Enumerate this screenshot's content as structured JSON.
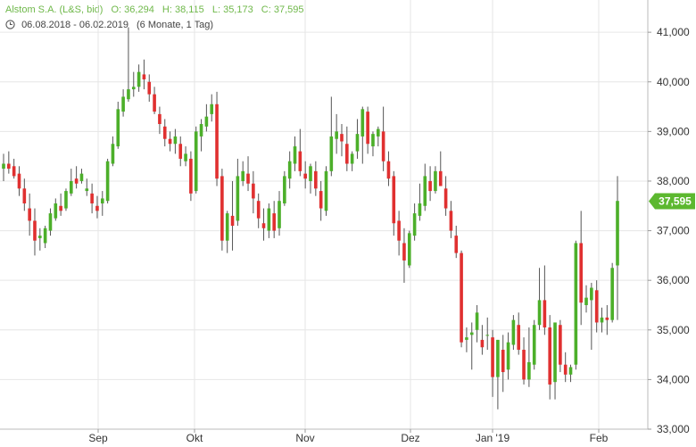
{
  "header": {
    "symbol": "Alstom S.A. (L&S, bid)",
    "open": "O: 36,294",
    "high": "H: 38,115",
    "low": "L: 35,173",
    "close": "C: 37,595",
    "range": "06.08.2018 - 06.02.2019",
    "period": "(6 Monate, 1 Tag)"
  },
  "colors": {
    "up": "#4caf2a",
    "down": "#e03030",
    "wick": "#555555",
    "grid": "#e6e6e6",
    "last_badge": "#5cb82f"
  },
  "chart_data": {
    "type": "candlestick",
    "x_ticks": [
      "Sep",
      "Okt",
      "Nov",
      "Dez",
      "Jan '19",
      "Feb"
    ],
    "y_ticks": [
      "33,000",
      "34,000",
      "35,000",
      "36,000",
      "37,000",
      "38,000",
      "39,000",
      "40,000",
      "41,000"
    ],
    "ylim": [
      33,
      41.65
    ],
    "last_value_label": "37,595",
    "last_value": 37.595,
    "ohlc": [
      [
        38.25,
        38.55,
        38.0,
        38.35
      ],
      [
        38.35,
        38.6,
        38.15,
        38.25
      ],
      [
        38.3,
        38.45,
        38.05,
        38.1
      ],
      [
        38.15,
        38.3,
        37.7,
        37.85
      ],
      [
        37.85,
        38.05,
        37.4,
        37.55
      ],
      [
        37.45,
        37.75,
        36.9,
        37.2
      ],
      [
        37.2,
        37.45,
        36.5,
        36.8
      ],
      [
        36.85,
        37.05,
        36.6,
        36.9
      ],
      [
        36.75,
        37.1,
        36.65,
        37.05
      ],
      [
        37.0,
        37.45,
        36.9,
        37.35
      ],
      [
        37.25,
        37.65,
        37.2,
        37.55
      ],
      [
        37.5,
        37.75,
        37.3,
        37.4
      ],
      [
        37.45,
        37.85,
        37.4,
        37.8
      ],
      [
        37.75,
        38.25,
        37.7,
        38.0
      ],
      [
        38.05,
        38.3,
        37.85,
        37.95
      ],
      [
        38.0,
        38.25,
        37.95,
        38.15
      ],
      [
        37.8,
        38.05,
        37.7,
        37.85
      ],
      [
        37.75,
        37.95,
        37.35,
        37.55
      ],
      [
        37.5,
        37.7,
        37.25,
        37.4
      ],
      [
        37.55,
        37.8,
        37.3,
        37.65
      ],
      [
        37.6,
        38.45,
        37.55,
        38.4
      ],
      [
        38.35,
        38.9,
        38.3,
        38.75
      ],
      [
        38.7,
        39.6,
        38.65,
        39.45
      ],
      [
        39.4,
        39.85,
        39.3,
        39.7
      ],
      [
        39.65,
        41.1,
        39.6,
        39.85
      ],
      [
        39.85,
        40.2,
        39.7,
        39.9
      ],
      [
        39.9,
        40.35,
        39.8,
        40.2
      ],
      [
        40.15,
        40.45,
        39.85,
        40.05
      ],
      [
        40.0,
        40.15,
        39.6,
        39.75
      ],
      [
        39.75,
        39.9,
        39.35,
        39.4
      ],
      [
        39.35,
        39.5,
        38.95,
        39.15
      ],
      [
        39.1,
        39.25,
        38.7,
        38.85
      ],
      [
        38.85,
        39.0,
        38.6,
        38.75
      ],
      [
        38.75,
        39.05,
        38.55,
        38.9
      ],
      [
        38.75,
        38.9,
        38.3,
        38.45
      ],
      [
        38.4,
        38.7,
        38.3,
        38.55
      ],
      [
        38.45,
        38.6,
        37.6,
        37.75
      ],
      [
        37.8,
        39.1,
        37.75,
        39.0
      ],
      [
        38.9,
        39.25,
        38.6,
        39.15
      ],
      [
        39.1,
        39.55,
        39.0,
        39.3
      ],
      [
        39.35,
        39.75,
        39.2,
        39.55
      ],
      [
        39.55,
        39.8,
        37.9,
        38.05
      ],
      [
        38.1,
        38.25,
        36.6,
        36.8
      ],
      [
        36.8,
        37.4,
        36.55,
        37.35
      ],
      [
        37.3,
        38.0,
        36.6,
        37.1
      ],
      [
        37.2,
        38.45,
        37.1,
        38.1
      ],
      [
        38.0,
        38.4,
        37.9,
        38.2
      ],
      [
        38.15,
        38.5,
        37.8,
        37.95
      ],
      [
        37.95,
        38.2,
        37.35,
        37.65
      ],
      [
        37.6,
        37.75,
        37.05,
        37.25
      ],
      [
        37.15,
        37.45,
        36.8,
        37.05
      ],
      [
        37.0,
        37.55,
        36.85,
        37.45
      ],
      [
        37.35,
        37.6,
        36.85,
        37.0
      ],
      [
        37.05,
        37.8,
        36.9,
        37.6
      ],
      [
        37.55,
        38.2,
        37.5,
        38.1
      ],
      [
        38.05,
        38.6,
        37.85,
        38.4
      ],
      [
        38.35,
        38.9,
        38.2,
        38.7
      ],
      [
        38.6,
        39.05,
        38.1,
        38.2
      ],
      [
        38.15,
        38.4,
        37.85,
        38.05
      ],
      [
        38.0,
        38.35,
        37.75,
        38.3
      ],
      [
        38.2,
        38.4,
        37.7,
        37.85
      ],
      [
        37.8,
        38.0,
        37.2,
        37.45
      ],
      [
        37.4,
        38.3,
        37.3,
        38.2
      ],
      [
        38.2,
        39.7,
        38.1,
        38.9
      ],
      [
        38.85,
        39.35,
        38.55,
        39.0
      ],
      [
        38.95,
        39.15,
        38.5,
        38.8
      ],
      [
        38.75,
        39.1,
        38.2,
        38.35
      ],
      [
        38.35,
        38.6,
        38.2,
        38.55
      ],
      [
        38.6,
        39.25,
        38.45,
        38.95
      ],
      [
        38.9,
        39.5,
        38.35,
        39.45
      ],
      [
        39.4,
        39.5,
        38.55,
        38.75
      ],
      [
        38.7,
        39.0,
        38.5,
        38.95
      ],
      [
        38.9,
        39.1,
        38.7,
        39.05
      ],
      [
        39.0,
        39.5,
        38.2,
        38.4
      ],
      [
        38.4,
        38.6,
        37.9,
        38.05
      ],
      [
        38.1,
        38.2,
        36.9,
        37.15
      ],
      [
        37.2,
        37.4,
        36.5,
        36.8
      ],
      [
        36.75,
        37.05,
        35.95,
        36.4
      ],
      [
        36.3,
        37.0,
        36.25,
        36.95
      ],
      [
        36.9,
        37.55,
        36.8,
        37.35
      ],
      [
        37.3,
        37.95,
        37.2,
        37.55
      ],
      [
        37.5,
        38.35,
        37.4,
        38.1
      ],
      [
        38.0,
        38.3,
        37.6,
        37.8
      ],
      [
        37.8,
        38.3,
        37.75,
        38.2
      ],
      [
        38.2,
        38.6,
        37.9,
        37.9
      ],
      [
        37.85,
        38.1,
        37.3,
        37.45
      ],
      [
        37.4,
        37.6,
        36.85,
        37.0
      ],
      [
        36.9,
        37.1,
        36.45,
        36.55
      ],
      [
        36.55,
        36.6,
        34.65,
        34.75
      ],
      [
        34.8,
        35.05,
        34.55,
        34.85
      ],
      [
        34.9,
        35.15,
        34.2,
        34.95
      ],
      [
        35.0,
        35.5,
        34.75,
        35.35
      ],
      [
        34.8,
        35.1,
        34.5,
        34.65
      ],
      [
        34.9,
        35.25,
        34.6,
        34.9
      ],
      [
        34.85,
        35.0,
        33.65,
        34.05
      ],
      [
        34.05,
        34.8,
        33.4,
        34.8
      ],
      [
        34.6,
        34.9,
        33.75,
        34.15
      ],
      [
        34.2,
        34.95,
        34.0,
        34.75
      ],
      [
        34.7,
        35.3,
        34.6,
        35.2
      ],
      [
        35.1,
        35.35,
        34.5,
        34.6
      ],
      [
        34.6,
        34.85,
        33.9,
        34.0
      ],
      [
        34.0,
        35.05,
        33.85,
        34.35
      ],
      [
        34.3,
        35.2,
        34.2,
        35.1
      ],
      [
        35.1,
        36.25,
        35.0,
        35.6
      ],
      [
        35.6,
        36.3,
        34.9,
        35.05
      ],
      [
        35.05,
        35.3,
        33.6,
        33.9
      ],
      [
        33.95,
        35.1,
        33.6,
        35.15
      ],
      [
        35.1,
        35.2,
        34.15,
        34.3
      ],
      [
        34.3,
        34.55,
        33.95,
        34.1
      ],
      [
        34.1,
        34.3,
        33.95,
        34.25
      ],
      [
        34.3,
        36.8,
        34.2,
        36.75
      ],
      [
        36.75,
        37.4,
        35.1,
        35.55
      ],
      [
        35.5,
        35.9,
        35.35,
        35.65
      ],
      [
        35.6,
        35.95,
        34.6,
        35.85
      ],
      [
        35.8,
        36.0,
        34.95,
        35.15
      ],
      [
        35.15,
        35.45,
        34.95,
        35.25
      ],
      [
        35.25,
        35.5,
        34.9,
        35.2
      ],
      [
        35.2,
        36.35,
        35.15,
        36.25
      ],
      [
        36.3,
        38.1,
        35.2,
        37.6
      ]
    ]
  }
}
